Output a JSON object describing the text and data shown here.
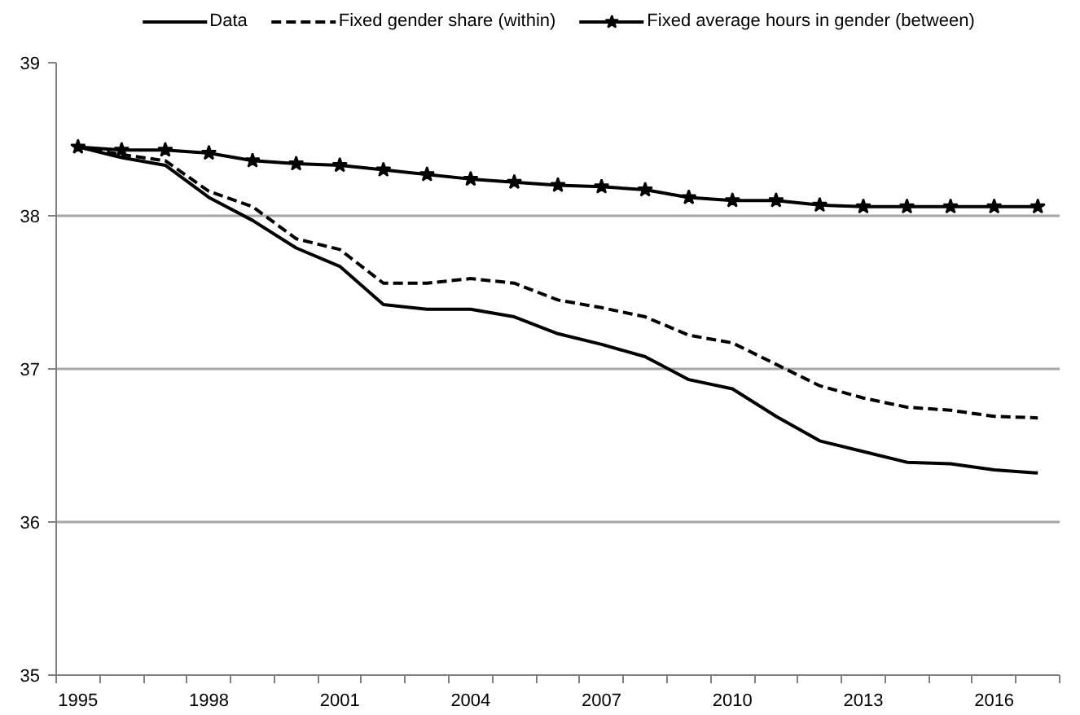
{
  "chart_data": {
    "type": "line",
    "categories": [
      "1995",
      null,
      null,
      "1998",
      null,
      null,
      "2001",
      null,
      null,
      "2004",
      null,
      null,
      "2007",
      null,
      null,
      "2010",
      null,
      null,
      "2013",
      null,
      null,
      "2016",
      null
    ],
    "series": [
      {
        "name": "Data",
        "color": "#000000",
        "line_style": "solid",
        "marker": "none",
        "values": [
          38.45,
          38.38,
          38.33,
          38.12,
          37.97,
          37.79,
          37.67,
          37.42,
          37.39,
          37.39,
          37.34,
          37.23,
          37.16,
          37.08,
          36.93,
          36.87,
          36.69,
          36.53,
          36.46,
          36.39,
          36.38,
          36.34,
          36.32
        ]
      },
      {
        "name": "Fixed gender share (within)",
        "color": "#000000",
        "line_style": "dashed",
        "marker": "none",
        "values": [
          38.45,
          38.4,
          38.36,
          38.16,
          38.06,
          37.85,
          37.78,
          37.56,
          37.56,
          37.59,
          37.56,
          37.45,
          37.4,
          37.34,
          37.22,
          37.17,
          37.03,
          36.89,
          36.81,
          36.75,
          36.73,
          36.69,
          36.68
        ]
      },
      {
        "name": "Fixed average hours in gender (between)",
        "color": "#000000",
        "line_style": "solid",
        "marker": "star",
        "values": [
          38.45,
          38.43,
          38.43,
          38.41,
          38.36,
          38.34,
          38.33,
          38.3,
          38.27,
          38.24,
          38.22,
          38.2,
          38.19,
          38.17,
          38.12,
          38.1,
          38.1,
          38.07,
          38.06,
          38.06,
          38.06,
          38.06,
          38.06
        ]
      }
    ],
    "ylim": [
      35,
      39
    ],
    "yticks": [
      35,
      36,
      37,
      38,
      39
    ],
    "grid": "y",
    "legend": "top"
  }
}
